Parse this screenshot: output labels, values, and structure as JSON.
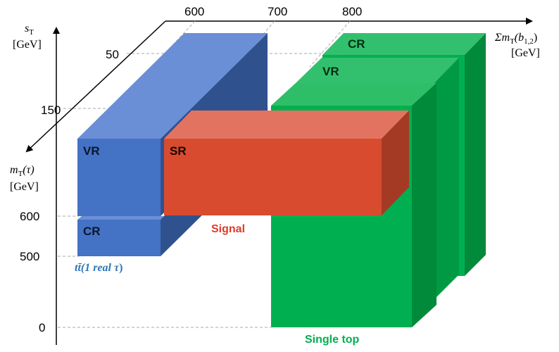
{
  "axes": {
    "y_axis": {
      "symbol": "s",
      "subscript": "T",
      "unit": "[GeV]",
      "ticks": [
        "50",
        "150"
      ]
    },
    "x_axis": {
      "prefix": "Σm",
      "subscript": "T",
      "arg_open": "(b",
      "arg_sub": "1,2",
      "arg_close": ")",
      "unit": "[GeV]",
      "ticks": [
        "600",
        "700",
        "800"
      ]
    },
    "z_axis": {
      "symbol": "m",
      "subscript": "T",
      "arg": "(τ)",
      "unit": "[GeV]",
      "ticks": [
        "600",
        "500",
        "0"
      ]
    }
  },
  "regions": {
    "ttbar": {
      "title_main": "tt̄(1 real ",
      "title_tau": "τ",
      "title_close": ")",
      "vr_label": "VR",
      "cr_label": "CR",
      "color": "#4472C4"
    },
    "signal": {
      "title": "Signal",
      "sr_label": "SR",
      "color": "#D84B2F",
      "title_color": "#E03A2A"
    },
    "single_top": {
      "title": "Single top",
      "vr_label": "VR",
      "cr_label": "CR",
      "color": "#00B050"
    }
  }
}
